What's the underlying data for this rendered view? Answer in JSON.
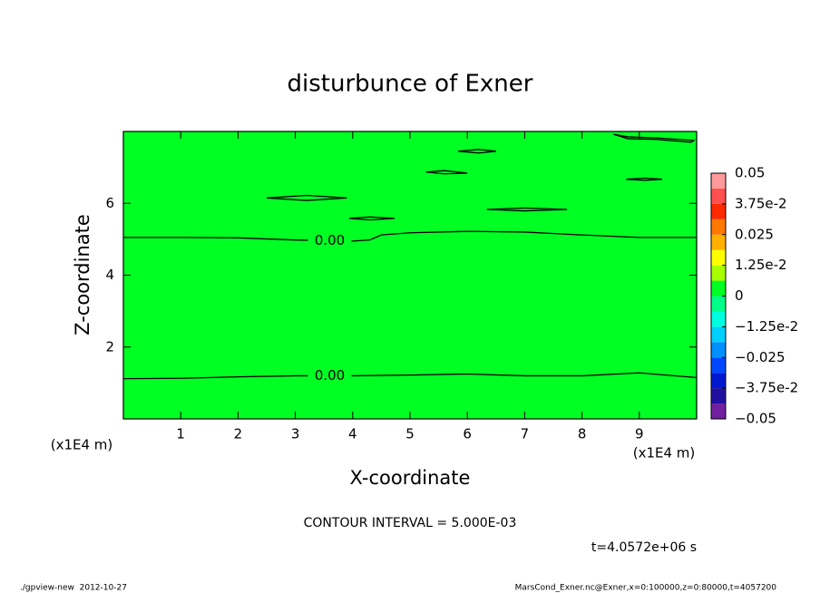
{
  "chart_data": {
    "type": "contour",
    "title": "disturbunce of Exner",
    "xlabel": "X-coordinate",
    "ylabel": "Z-coordinate",
    "x_unit": "(x1E4 m)",
    "y_unit": "(x1E4 m)",
    "xlim": [
      0,
      10
    ],
    "ylim": [
      0,
      8
    ],
    "xticks": [
      1,
      2,
      3,
      4,
      5,
      6,
      7,
      8,
      9
    ],
    "yticks": [
      2,
      4,
      6
    ],
    "fill_color": "#00ff22",
    "line_color": "#000000",
    "contours": [
      {
        "level": 0,
        "label": "0.00",
        "x": [
          0,
          1,
          2,
          3,
          4,
          5,
          6,
          7,
          8,
          9,
          10
        ],
        "y": [
          1.12,
          1.13,
          1.17,
          1.2,
          1.2,
          1.22,
          1.25,
          1.2,
          1.2,
          1.28,
          1.15
        ]
      },
      {
        "level": 0,
        "label": "0.00",
        "x": [
          0,
          1,
          2,
          3,
          4,
          4.3,
          4.4,
          4.5,
          5,
          6,
          7,
          8,
          9,
          10
        ],
        "y": [
          5.05,
          5.05,
          5.04,
          4.98,
          4.95,
          4.98,
          5.05,
          5.12,
          5.18,
          5.22,
          5.2,
          5.12,
          5.05,
          5.05
        ]
      },
      {
        "level": 0,
        "x": [
          2.5,
          3.2,
          3.9,
          3.2,
          2.5
        ],
        "y": [
          6.15,
          6.22,
          6.15,
          6.08,
          6.15
        ]
      },
      {
        "level": 0,
        "x": [
          3.94,
          4.3,
          4.73,
          4.3,
          3.94
        ],
        "y": [
          5.58,
          5.62,
          5.58,
          5.54,
          5.58
        ]
      },
      {
        "level": 0,
        "x": [
          5.28,
          5.6,
          6.0,
          5.6,
          5.28
        ],
        "y": [
          6.87,
          6.91,
          6.84,
          6.82,
          6.87
        ]
      },
      {
        "level": 0,
        "x": [
          5.84,
          6.2,
          6.5,
          6.2,
          5.84
        ],
        "y": [
          7.45,
          7.5,
          7.45,
          7.4,
          7.45
        ]
      },
      {
        "level": 0,
        "x": [
          6.34,
          7.0,
          7.74,
          7.0,
          6.34
        ],
        "y": [
          5.83,
          5.87,
          5.83,
          5.79,
          5.83
        ]
      },
      {
        "level": 0,
        "x": [
          8.77,
          9.1,
          9.4,
          9.1,
          8.77
        ],
        "y": [
          6.67,
          6.7,
          6.67,
          6.64,
          6.67
        ]
      },
      {
        "level": 0,
        "x": [
          8.55,
          8.8,
          9.3,
          9.95,
          9.9,
          9.3,
          8.8,
          8.55
        ],
        "y": [
          7.92,
          7.85,
          7.82,
          7.75,
          7.7,
          7.78,
          7.8,
          7.92
        ]
      }
    ],
    "colorbar": {
      "lim": [
        -0.05,
        0.05
      ],
      "ticks": [
        {
          "value": 0.05,
          "label": "0.05"
        },
        {
          "value": 0.0375,
          "label": "3.75e-2"
        },
        {
          "value": 0.025,
          "label": "0.025"
        },
        {
          "value": 0.0125,
          "label": "1.25e-2"
        },
        0,
        {
          "value": -0.0125,
          "label": "−1.25e-2"
        },
        {
          "value": -0.025,
          "label": "−0.025"
        },
        {
          "value": -0.0375,
          "label": "−3.75e-2"
        },
        {
          "value": -0.05,
          "label": "−0.05"
        }
      ],
      "levels": [
        -0.05,
        -0.04375,
        -0.0375,
        -0.03125,
        -0.025,
        -0.01875,
        -0.0125,
        -0.00625,
        0,
        0.00625,
        0.0125,
        0.01875,
        0.025,
        0.03125,
        0.0375,
        0.04375,
        0.05
      ],
      "colors": [
        "#7020a0",
        "#2010a0",
        "#0018d0",
        "#0048ff",
        "#0090ff",
        "#00d0ff",
        "#00ffe0",
        "#00ff88",
        "#00ff22",
        "#a8ff00",
        "#ffff00",
        "#ffb000",
        "#ff7800",
        "#ff2a00",
        "#ff5050",
        "#ff9a9a"
      ]
    },
    "contour_interval": "CONTOUR INTERVAL = 5.000E-03",
    "time": "t=4.0572e+06 s",
    "footer_left": "./gpview-new  2012-10-27",
    "footer_right": "MarsCond_Exner.nc@Exner,x=0:100000,z=0:80000,t=4057200"
  }
}
